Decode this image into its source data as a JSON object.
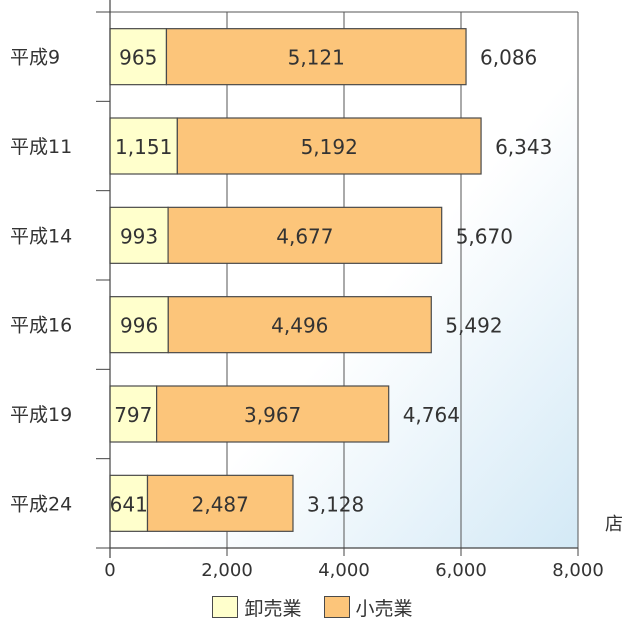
{
  "chart_data": {
    "type": "bar",
    "orientation": "horizontal",
    "stacked": true,
    "categories": [
      "平成9",
      "平成11",
      "平成14",
      "平成16",
      "平成19",
      "平成24"
    ],
    "series": [
      {
        "name": "卸売業",
        "color": "#ffffcc",
        "values": [
          965,
          1151,
          993,
          996,
          797,
          641
        ],
        "labels": [
          "965",
          "1,151",
          "993",
          "996",
          "797",
          "641"
        ]
      },
      {
        "name": "小売業",
        "color": "#fcc57a",
        "values": [
          5121,
          5192,
          4677,
          4496,
          3967,
          2487
        ],
        "labels": [
          "5,121",
          "5,192",
          "4,677",
          "4,496",
          "3,967",
          "2,487"
        ]
      }
    ],
    "totals": [
      6086,
      6343,
      5670,
      5492,
      4764,
      3128
    ],
    "total_labels": [
      "6,086",
      "6,343",
      "5,670",
      "5,492",
      "4,764",
      "3,128"
    ],
    "xlim": [
      0,
      8000
    ],
    "xticks": [
      0,
      2000,
      4000,
      6000,
      8000
    ],
    "xtick_labels": [
      "0",
      "2,000",
      "4,000",
      "6,000",
      "8,000"
    ],
    "unit_label": "店",
    "grid": true,
    "legend_position": "bottom-center"
  }
}
